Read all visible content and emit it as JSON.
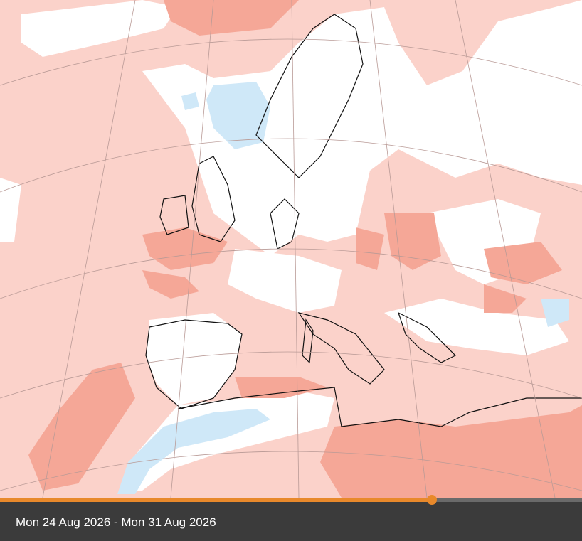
{
  "caption": "Mon 24 Aug 2026 - Mon 31 Aug 2026"
}
